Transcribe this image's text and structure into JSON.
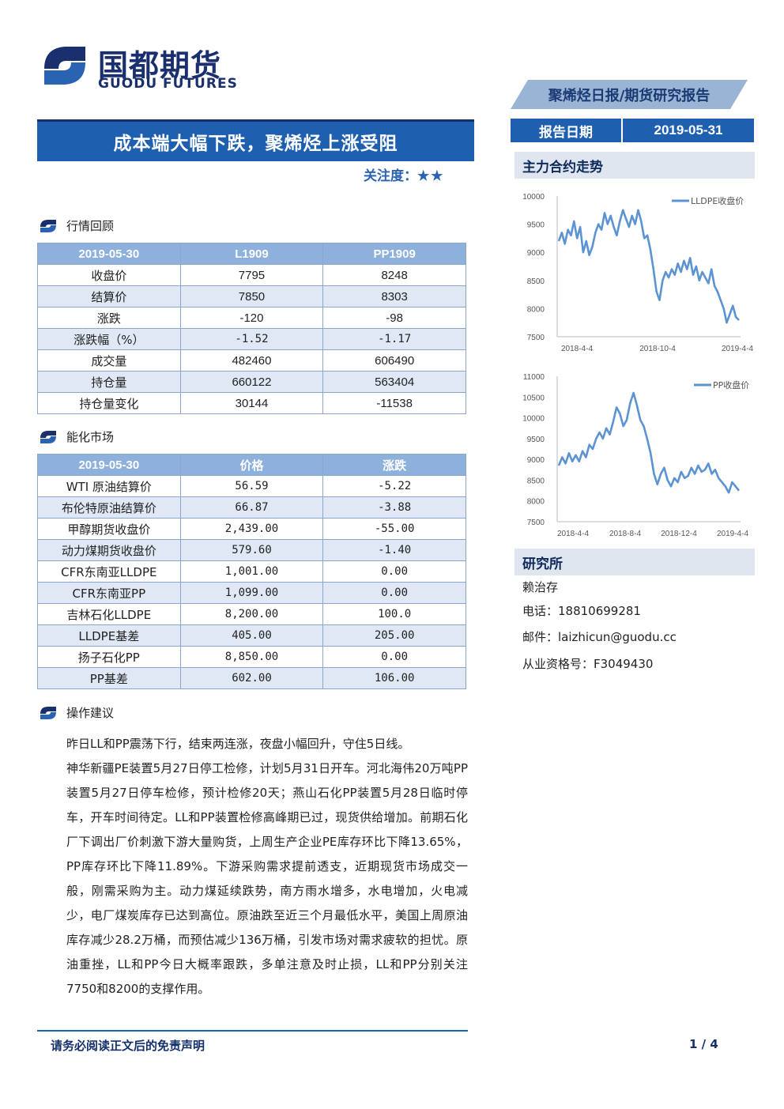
{
  "brand": {
    "name_cn": "国都期货",
    "name_en": "GUODU FUTURES"
  },
  "report_type": "聚烯烃日报/期货研究报告",
  "report_date": {
    "label": "报告日期",
    "value": "2019-05-31"
  },
  "title": "成本端大幅下跌，聚烯烃上涨受阻",
  "focus": {
    "label": "关注度：",
    "stars": "★★"
  },
  "section_market": "行情回顾",
  "market_table": {
    "headers": [
      "2019-05-30",
      "L1909",
      "PP1909"
    ],
    "rows": [
      [
        "收盘价",
        "7795",
        "8248"
      ],
      [
        "结算价",
        "7850",
        "8303"
      ],
      [
        "涨跌",
        "-120",
        "-98"
      ],
      [
        "涨跌幅（%）",
        "-1.52",
        "-1.17"
      ],
      [
        "成交量",
        "482460",
        "606490"
      ],
      [
        "持仓量",
        "660122",
        "563404"
      ],
      [
        "持仓量变化",
        "30144",
        "-11538"
      ]
    ]
  },
  "section_energy": "能化市场",
  "energy_table": {
    "headers": [
      "2019-05-30",
      "价格",
      "涨跌"
    ],
    "rows": [
      [
        "WTI 原油结算价",
        "56.59",
        "-5.22"
      ],
      [
        "布伦特原油结算价",
        "66.87",
        "-3.88"
      ],
      [
        "甲醇期货收盘价",
        "2,439.00",
        "-55.00"
      ],
      [
        "动力煤期货收盘价",
        "579.60",
        "-1.40"
      ],
      [
        "CFR东南亚LLDPE",
        "1,001.00",
        "0.00"
      ],
      [
        "CFR东南亚PP",
        "1,099.00",
        "0.00"
      ],
      [
        "吉林石化LLDPE",
        "8,200.00",
        "100.0"
      ],
      [
        "LLDPE基差",
        "405.00",
        "205.00"
      ],
      [
        "扬子石化PP",
        "8,850.00",
        "0.00"
      ],
      [
        "PP基差",
        "602.00",
        "106.00"
      ]
    ]
  },
  "section_advice": "操作建议",
  "advice_paragraphs": [
    "昨日LL和PP震荡下行，结束两连涨，夜盘小幅回升，守住5日线。",
    "神华新疆PE装置5月27日停工检修，计划5月31日开车。河北海伟20万吨PP装置5月27日停车检修，预计检修20天；燕山石化PP装置5月28日临时停车，开车时间待定。LL和PP装置检修高峰期已过，现货供给增加。前期石化厂下调出厂价刺激下游大量购货，上周生产企业PE库存环比下降13.65%，PP库存环比下降11.89%。下游采购需求提前透支，近期现货市场成交一般，刚需采购为主。动力煤延续跌势，南方雨水增多，水电增加，火电减少，电厂煤炭库存已达到高位。原油跌至近三个月最低水平，美国上周原油库存减少28.2万桶，而预估减少136万桶，引发市场对需求疲软的担忧。原油重挫，LL和PP今日大概率跟跌，多单注意及时止损，LL和PP分别关注7750和8200的支撑作用。"
  ],
  "side_chart_head": "主力合约走势",
  "chart_data": [
    {
      "type": "line",
      "series": [
        {
          "name": "LLDPE收盘价",
          "values": [
            9200,
            9350,
            9150,
            9400,
            9300,
            9550,
            9250,
            9450,
            9000,
            9200,
            8950,
            9100,
            9350,
            9500,
            9400,
            9700,
            9500,
            9650,
            9450,
            9300,
            9550,
            9750,
            9600,
            9450,
            9650,
            9500,
            9750,
            9550,
            9250,
            9300,
            9050,
            8700,
            8300,
            8150,
            8500,
            8650,
            8550,
            8700,
            8600,
            8800,
            8650,
            8850,
            8700,
            8900,
            8600,
            8750,
            8500,
            8650,
            8550,
            8450,
            8700,
            8400,
            8300,
            8150,
            8000,
            7750,
            7900,
            8050,
            7850,
            7795
          ]
        }
      ],
      "x_ticks": [
        "2018-4-4",
        "2018-10-4",
        "2019-4-4"
      ],
      "y_ticks": [
        "10000",
        "9500",
        "9000",
        "8500",
        "8000",
        "7500"
      ],
      "ylim": [
        7500,
        10000
      ]
    },
    {
      "type": "line",
      "series": [
        {
          "name": "PP收盘价",
          "values": [
            8850,
            9050,
            8900,
            9150,
            8950,
            9100,
            8950,
            9200,
            9050,
            9350,
            9250,
            9500,
            9650,
            9500,
            9750,
            9600,
            9900,
            10250,
            10100,
            9800,
            9950,
            10350,
            10600,
            10300,
            9950,
            9800,
            9500,
            9150,
            8650,
            8400,
            8650,
            8800,
            8500,
            8350,
            8550,
            8450,
            8700,
            8550,
            8600,
            8800,
            8650,
            8850,
            8700,
            8750,
            8900,
            8650,
            8750,
            8550,
            8450,
            8350,
            8200,
            8450,
            8350,
            8248
          ]
        }
      ],
      "x_ticks": [
        "2018-4-4",
        "2018-8-4",
        "2018-12-4",
        "2019-4-4"
      ],
      "y_ticks": [
        "11000",
        "10500",
        "10000",
        "9500",
        "9000",
        "8500",
        "8000",
        "7500"
      ],
      "ylim": [
        7500,
        11000
      ]
    }
  ],
  "side_research_head": "研究所",
  "contact": {
    "name": "赖治存",
    "phone": "电话：18810699281",
    "email": "邮件：laizhicun@guodu.cc",
    "license": "从业资格号：F3049430"
  },
  "footer": {
    "disclaimer": "请务必阅读正文后的免责声明",
    "page": "1 / 4"
  },
  "colors": {
    "primary": "#1f5fb0",
    "header_light": "#8db0dc",
    "row_alt": "#dfe8f4",
    "line": "#5b93d3"
  }
}
